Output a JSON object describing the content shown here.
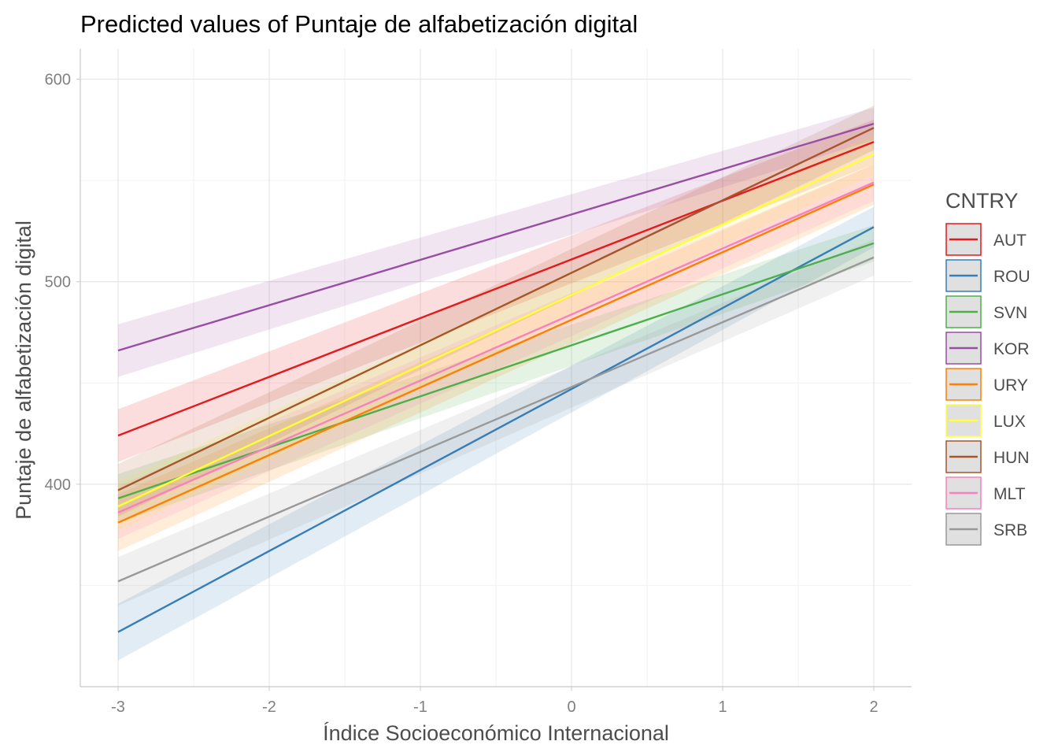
{
  "chart_data": {
    "type": "line",
    "title": "Predicted values of Puntaje de alfabetización digital",
    "xlabel": "Índice Socioeconómico Internacional",
    "ylabel": "Puntaje de alfabetización digital",
    "xlim": [
      -3.25,
      2.25
    ],
    "ylim": [
      300,
      615
    ],
    "x_ticks": [
      -3,
      -2,
      -1,
      0,
      1,
      2
    ],
    "x_tick_labels": [
      "-3",
      "-2",
      "-1",
      "0",
      "1",
      "2"
    ],
    "y_ticks": [
      400,
      500,
      600
    ],
    "y_tick_labels": [
      "400",
      "500",
      "600"
    ],
    "grid": true,
    "legend": {
      "title": "CNTRY",
      "position": "right"
    },
    "band_opacity": 0.15,
    "series": [
      {
        "name": "AUT",
        "color": "#e41a1c",
        "x": [
          -3,
          2
        ],
        "y": [
          424,
          569
        ],
        "lower": [
          411,
          558
        ],
        "upper": [
          437,
          580
        ]
      },
      {
        "name": "ROU",
        "color": "#377eb8",
        "x": [
          -3,
          2
        ],
        "y": [
          327,
          527
        ],
        "lower": [
          313,
          517
        ],
        "upper": [
          341,
          537
        ]
      },
      {
        "name": "SVN",
        "color": "#4daf4a",
        "x": [
          -3,
          2
        ],
        "y": [
          393,
          519
        ],
        "lower": [
          381,
          510
        ],
        "upper": [
          405,
          528
        ]
      },
      {
        "name": "KOR",
        "color": "#984ea3",
        "x": [
          -3,
          2
        ],
        "y": [
          466,
          578
        ],
        "lower": [
          453,
          570
        ],
        "upper": [
          479,
          586
        ]
      },
      {
        "name": "URY",
        "color": "#ff7f00",
        "x": [
          -3,
          2
        ],
        "y": [
          381,
          548
        ],
        "lower": [
          367,
          538
        ],
        "upper": [
          395,
          558
        ]
      },
      {
        "name": "LUX",
        "color": "#ffff33",
        "x": [
          -3,
          2
        ],
        "y": [
          389,
          563
        ],
        "lower": [
          377,
          553
        ],
        "upper": [
          401,
          573
        ]
      },
      {
        "name": "HUN",
        "color": "#a65628",
        "x": [
          -3,
          2
        ],
        "y": [
          397,
          576
        ],
        "lower": [
          384,
          565
        ],
        "upper": [
          410,
          587
        ]
      },
      {
        "name": "MLT",
        "color": "#f781bf",
        "x": [
          -3,
          2
        ],
        "y": [
          386,
          549
        ],
        "lower": [
          373,
          540
        ],
        "upper": [
          399,
          558
        ]
      },
      {
        "name": "SRB",
        "color": "#999999",
        "x": [
          -3,
          2
        ],
        "y": [
          352,
          512
        ],
        "lower": [
          340,
          503
        ],
        "upper": [
          364,
          521
        ]
      }
    ]
  }
}
